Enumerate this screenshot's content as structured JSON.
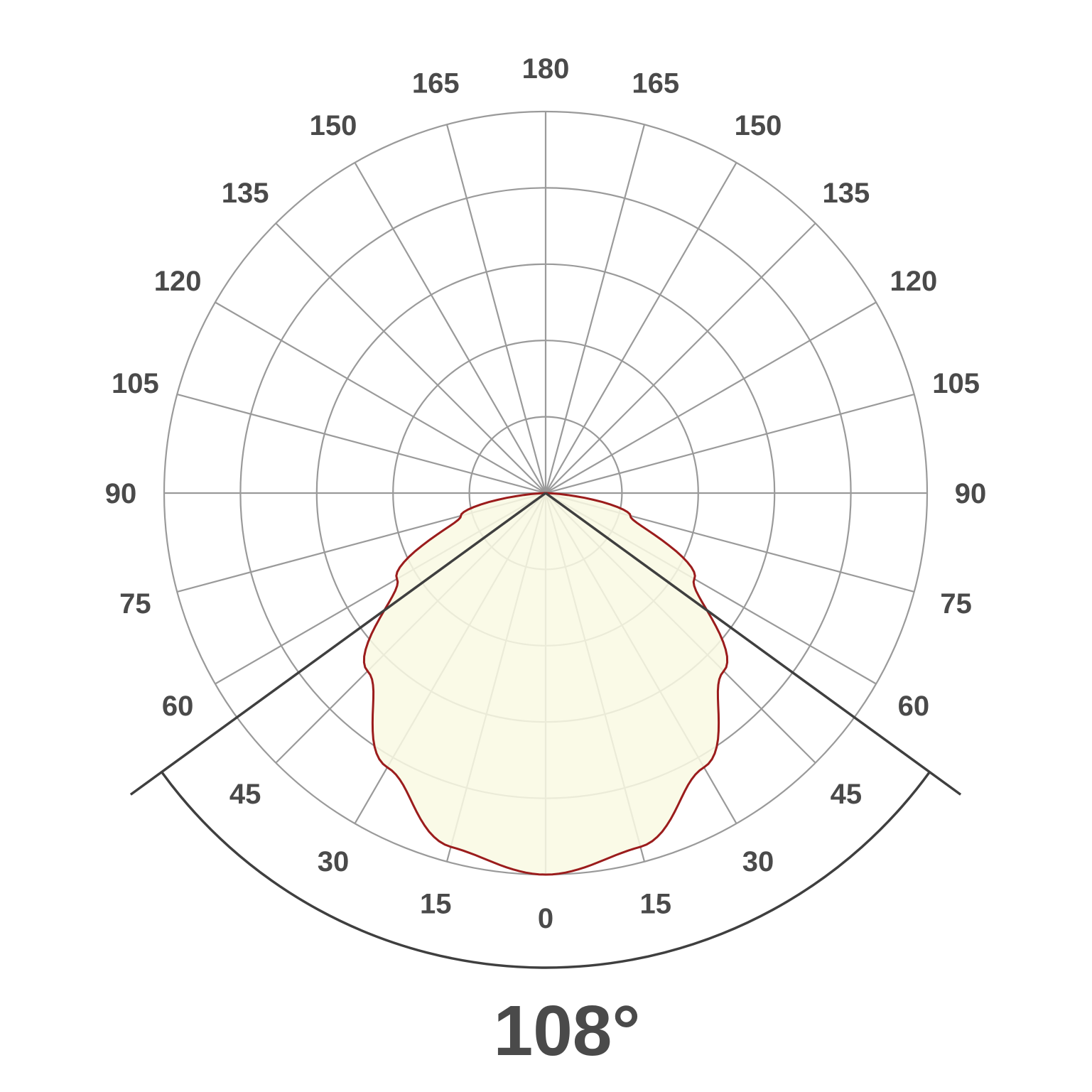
{
  "chart_data": {
    "type": "polar-light-distribution",
    "angle_step": 15,
    "angle_labels_left": [
      "0",
      "15",
      "30",
      "45",
      "60",
      "75",
      "90",
      "105",
      "120",
      "135",
      "150",
      "165",
      "180"
    ],
    "angle_labels_right": [
      "15",
      "30",
      "45",
      "60",
      "75",
      "90",
      "105",
      "120",
      "135",
      "150",
      "165"
    ],
    "ring_count": 5,
    "radial_max": 100,
    "series": [
      {
        "angles": [
          0,
          15,
          30,
          45,
          60,
          75,
          90
        ],
        "values": [
          100,
          96,
          83,
          66,
          45,
          23,
          0
        ],
        "symmetric": true
      }
    ],
    "beam_angle_label": "108°",
    "beam_angle": 108,
    "colors": {
      "grid": "#9a9a9a",
      "curve": "#9b1c1c",
      "fill": "#f9f9e3",
      "beam": "#3f3f3f",
      "text": "#4a4a4a"
    }
  }
}
